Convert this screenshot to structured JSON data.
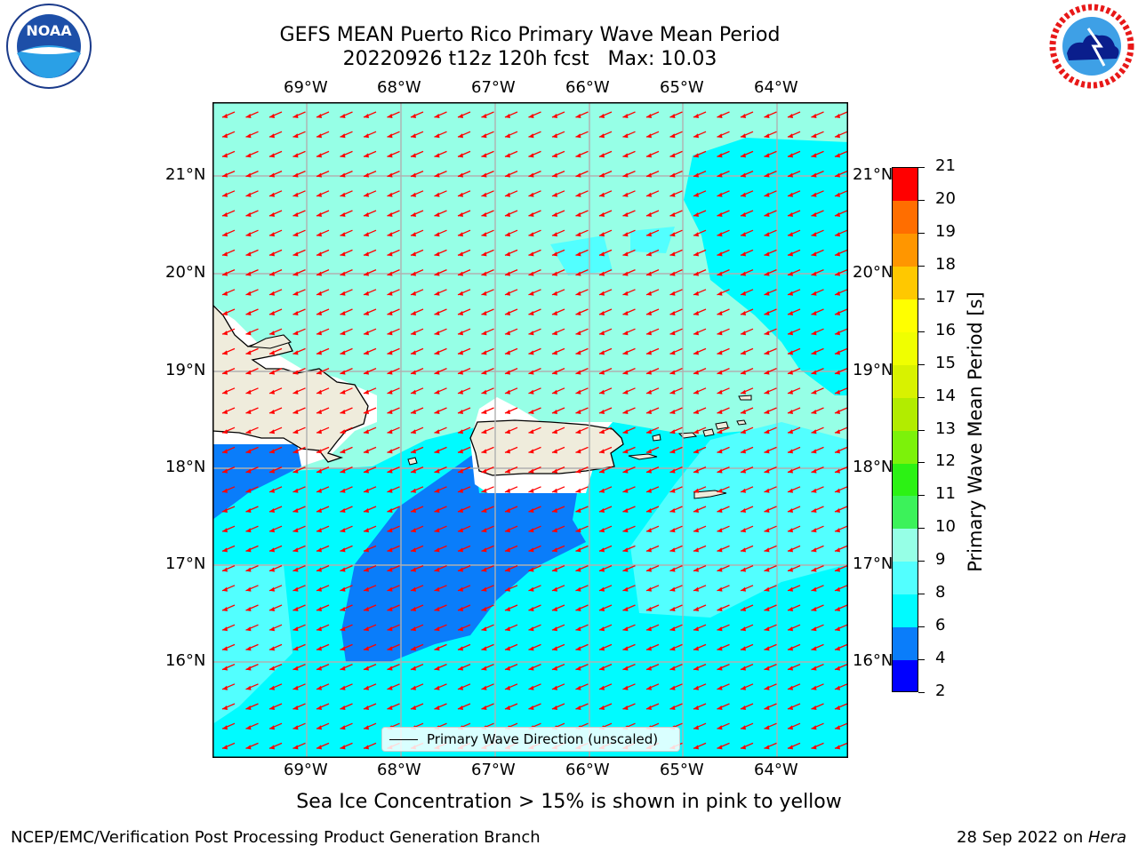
{
  "title": {
    "line1": "GEFS MEAN Puerto Rico Primary Wave Mean Period",
    "line2": "20220926 t12z 120h fcst   Max: 10.03"
  },
  "logos": {
    "left": {
      "icon": "noaa-logo",
      "text": "NOAA"
    },
    "right": {
      "icon": "national-weather-service-logo"
    }
  },
  "map": {
    "lon_labels": [
      "69°W",
      "68°W",
      "67°W",
      "66°W",
      "65°W",
      "64°W"
    ],
    "lat_labels": [
      "21°N",
      "20°N",
      "19°N",
      "18°N",
      "17°N",
      "16°N"
    ],
    "legend": "Primary Wave Direction (unscaled)",
    "colors": {
      "land": "#efecdc",
      "nodata": "#ffffff",
      "arrow": "#ff0000",
      "grid": "#b0b0b0",
      "coast": "#000000"
    },
    "regions": {
      "period_6_8_dark": "#0a7dfa",
      "period_8_9": "#00fbff",
      "period_9_10": "#52ffff",
      "period_10_11": "#96ffe6"
    }
  },
  "colorbar": {
    "title": "Primary Wave Mean Period [s]",
    "ticks": [
      "2",
      "4",
      "6",
      "8",
      "9",
      "10",
      "11",
      "12",
      "13",
      "14",
      "15",
      "16",
      "17",
      "18",
      "19",
      "20",
      "21"
    ],
    "colors": [
      "#0000ff",
      "#0a7dfa",
      "#00fbff",
      "#52ffff",
      "#96ffe6",
      "#3cf25a",
      "#2cf214",
      "#7cf20a",
      "#b2ec00",
      "#d8f200",
      "#f0ff00",
      "#ffff00",
      "#ffc800",
      "#ff9600",
      "#ff6e00",
      "#ff3c00",
      "#ff0000"
    ]
  },
  "caption": "Sea Ice Concentration > 15% is shown in pink to yellow",
  "footer": {
    "left": "NCEP/EMC/Verification Post Processing Product Generation Branch",
    "right_prefix": "28 Sep 2022 on ",
    "right_host": "Hera"
  }
}
